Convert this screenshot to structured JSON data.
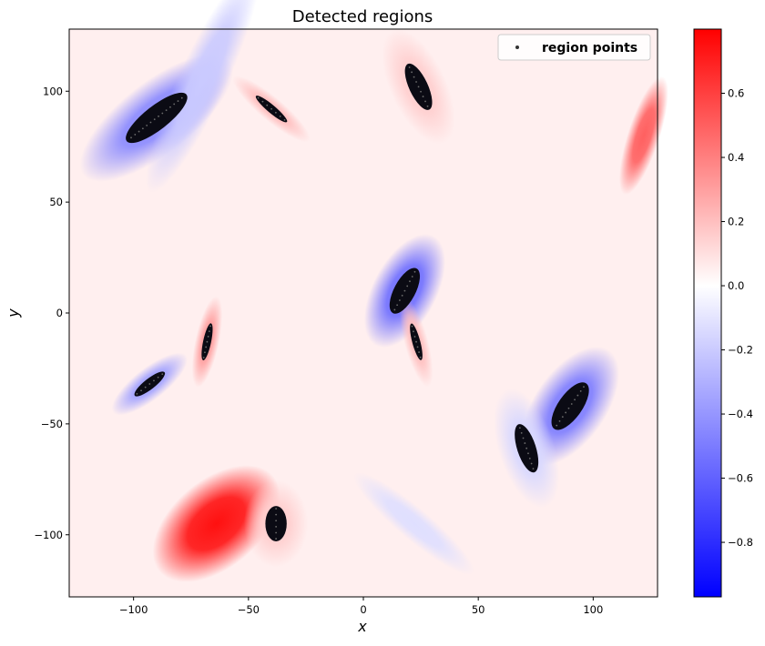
{
  "chart_data": {
    "type": "heatmap",
    "title": "Detected regions",
    "xlabel": "x",
    "ylabel": "y",
    "xlim": [
      -128,
      128
    ],
    "ylim": [
      -128,
      128
    ],
    "xticks": [
      -100,
      -50,
      0,
      50,
      100
    ],
    "yticks": [
      -100,
      -50,
      0,
      50,
      100
    ],
    "xtick_labels": [
      "−100",
      "−50",
      "0",
      "50",
      "100"
    ],
    "ytick_labels": [
      "−100",
      "−50",
      "0",
      "50",
      "100"
    ],
    "background_value": 0.05,
    "colormap": "bwr",
    "colorbar": {
      "range": [
        -0.97,
        0.8
      ],
      "ticks": [
        0.6,
        0.4,
        0.2,
        0.0,
        -0.2,
        -0.4,
        -0.6,
        -0.8
      ],
      "tick_labels": [
        "0.6",
        "0.4",
        "0.2",
        "0.0",
        "−0.2",
        "−0.4",
        "−0.6",
        "−0.8"
      ],
      "colors": {
        "low": "#0000ff",
        "mid": "#ffffff",
        "high": "#ff0000"
      }
    },
    "legend": {
      "label": "region points",
      "position": "top-right",
      "marker_color": "#000000"
    },
    "regions": [
      {
        "name": "blob-a",
        "cx": -90,
        "cy": 88,
        "length": 30,
        "width": 9,
        "angle_deg": 38,
        "value": -0.45,
        "points": true
      },
      {
        "name": "streak-a",
        "cx": -70,
        "cy": 105,
        "length": 40,
        "width": 6,
        "angle_deg": 65,
        "value": -0.2,
        "points": false
      },
      {
        "name": "blob-b",
        "cx": -40,
        "cy": 92,
        "length": 16,
        "width": 3,
        "angle_deg": -40,
        "value": 0.2,
        "points": true
      },
      {
        "name": "blob-c",
        "cx": 24,
        "cy": 102,
        "length": 20,
        "width": 7,
        "angle_deg": -65,
        "value": 0.15,
        "points": true
      },
      {
        "name": "streak-b",
        "cx": 122,
        "cy": 80,
        "length": 20,
        "width": 4,
        "angle_deg": 72,
        "value": 0.5,
        "points": false
      },
      {
        "name": "blob-d",
        "cx": 18,
        "cy": 10,
        "length": 20,
        "width": 8,
        "angle_deg": 62,
        "value": -0.55,
        "points": true
      },
      {
        "name": "blob-e",
        "cx": 23,
        "cy": -13,
        "length": 15,
        "width": 3,
        "angle_deg": -75,
        "value": 0.2,
        "points": true
      },
      {
        "name": "blob-f",
        "cx": -68,
        "cy": -13,
        "length": 15,
        "width": 3,
        "angle_deg": 78,
        "value": 0.3,
        "points": true
      },
      {
        "name": "blob-g",
        "cx": -93,
        "cy": -32,
        "length": 15,
        "width": 4,
        "angle_deg": 38,
        "value": -0.35,
        "points": true
      },
      {
        "name": "blob-h",
        "cx": 90,
        "cy": -42,
        "length": 22,
        "width": 9,
        "angle_deg": 55,
        "value": -0.5,
        "points": true
      },
      {
        "name": "blob-i",
        "cx": 71,
        "cy": -61,
        "length": 20,
        "width": 7,
        "angle_deg": -72,
        "value": -0.15,
        "points": true
      },
      {
        "name": "blob-j",
        "cx": -64,
        "cy": -95,
        "length": 24,
        "width": 11,
        "angle_deg": 40,
        "value": 0.75,
        "points": false
      },
      {
        "name": "blob-k",
        "cx": -38,
        "cy": -95,
        "length": 14,
        "width": 8,
        "angle_deg": 90,
        "value": 0.15,
        "points": true
      },
      {
        "name": "streak-c",
        "cx": 22,
        "cy": -95,
        "length": 25,
        "width": 4,
        "angle_deg": -40,
        "value": -0.12,
        "points": false
      }
    ]
  }
}
